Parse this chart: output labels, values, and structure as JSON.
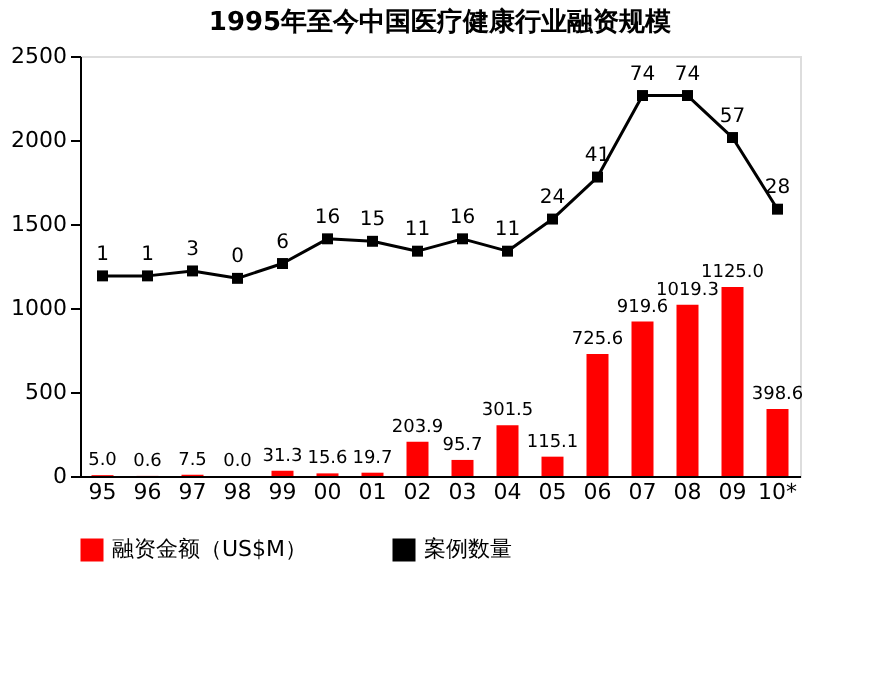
{
  "chart_data": {
    "type": "bar",
    "title": "1995年至今中国医疗健康行业融资规模",
    "categories": [
      "95",
      "96",
      "97",
      "98",
      "99",
      "00",
      "01",
      "02",
      "03",
      "04",
      "05",
      "06",
      "07",
      "08",
      "09",
      "10*"
    ],
    "series": [
      {
        "name": "融资金额（US$M）",
        "color": "#ff0000",
        "values": [
          5.0,
          0.6,
          7.5,
          0.0,
          31.3,
          15.6,
          19.7,
          203.9,
          95.7,
          301.5,
          115.1,
          725.6,
          919.6,
          1019.3,
          1125.0,
          398.6
        ],
        "value_labels": [
          "5.0",
          "0.6",
          "7.5",
          "0.0",
          "31.3",
          "15.6",
          "19.7",
          "203.9",
          "95.7",
          "301.5",
          "115.1",
          "725.6",
          "919.6",
          "1019.3",
          "1125.0",
          "398.6"
        ]
      },
      {
        "name": "案例数量",
        "type": "line",
        "axis": "y2",
        "color": "#000000",
        "marker": "square",
        "values": [
          1,
          1,
          3,
          0,
          6,
          16,
          15,
          11,
          16,
          11,
          24,
          41,
          74,
          74,
          57,
          28
        ]
      }
    ],
    "ylim": [
      0,
      2500
    ],
    "yticks": [
      0,
      500,
      1000,
      1500,
      2000,
      2500
    ],
    "y2lim": [
      -80,
      90
    ],
    "data_labels": true,
    "grid": false,
    "legend": "bottom"
  }
}
